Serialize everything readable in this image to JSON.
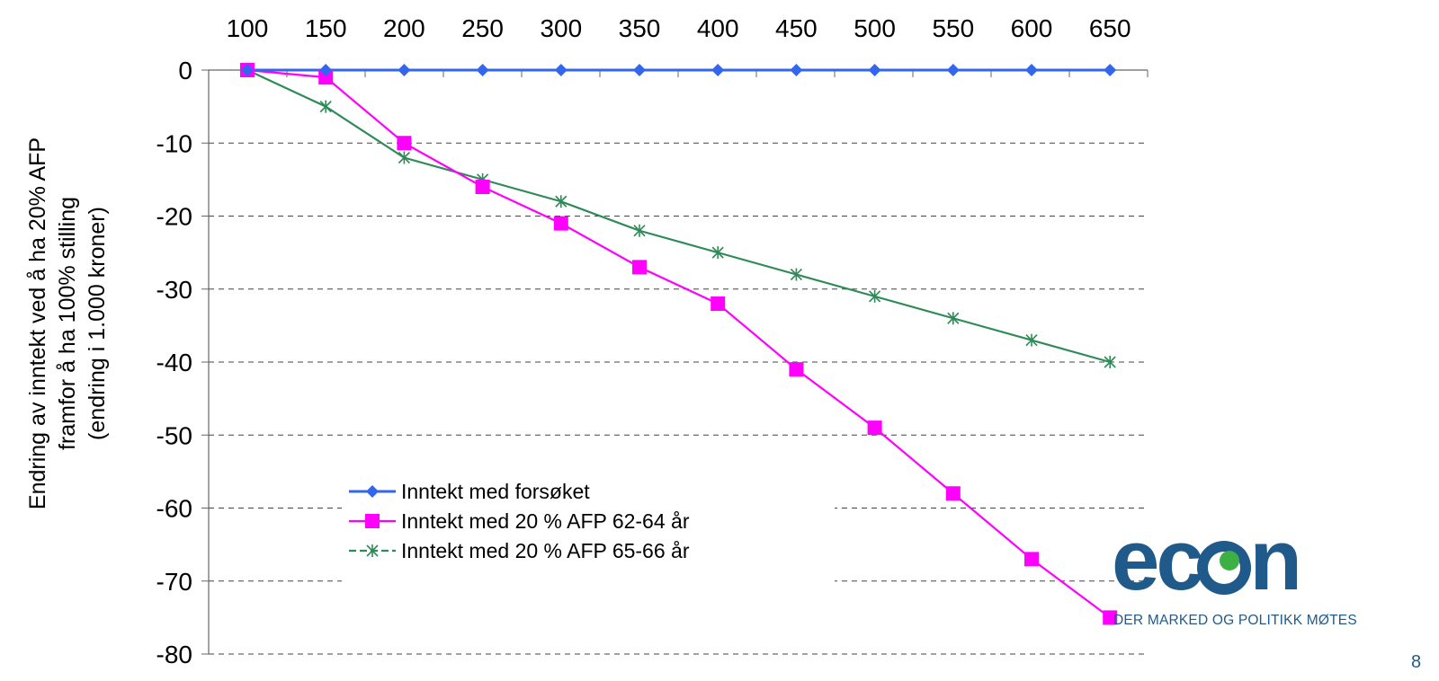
{
  "chart_data": {
    "type": "line",
    "title": "",
    "xlabel": "",
    "ylabel_lines": [
      "Endring av inntekt ved å ha 20% AFP",
      "framfor å ha 100% stilling",
      "(endring i 1.000 kroner)"
    ],
    "x": [
      100,
      150,
      200,
      250,
      300,
      350,
      400,
      450,
      500,
      550,
      600,
      650
    ],
    "x_ticks": [
      "100",
      "150",
      "200",
      "250",
      "300",
      "350",
      "400",
      "450",
      "500",
      "550",
      "600",
      "650"
    ],
    "y_ticks": [
      "0",
      "-10",
      "-20",
      "-30",
      "-40",
      "-50",
      "-60",
      "-70",
      "-80"
    ],
    "ylim": [
      -80,
      0
    ],
    "x_axis_position": "top",
    "grid": "horizontal dashed",
    "legend_position": "lower-left",
    "series": [
      {
        "name": "Inntekt med forsøket",
        "color": "#3366ee",
        "marker": "diamond",
        "values": [
          0,
          0,
          0,
          0,
          0,
          0,
          0,
          0,
          0,
          0,
          0,
          0
        ]
      },
      {
        "name": "Inntekt med 20 % AFP 62-64 år",
        "color": "#ff00ff",
        "marker": "square",
        "values": [
          0,
          -1,
          -10,
          -16,
          -21,
          -27,
          -32,
          -41,
          -49,
          -58,
          -67,
          -75
        ]
      },
      {
        "name": "Inntekt med 20 % AFP 65-66 år",
        "color": "#2e8b57",
        "marker": "asterisk",
        "values": [
          0,
          -5,
          -12,
          -15,
          -18,
          -22,
          -25,
          -28,
          -31,
          -34,
          -37,
          -40
        ]
      }
    ]
  },
  "logo": {
    "word": "econ",
    "tagline": "DER MARKED OG POLITIKK MØTES"
  },
  "page_number": "8"
}
